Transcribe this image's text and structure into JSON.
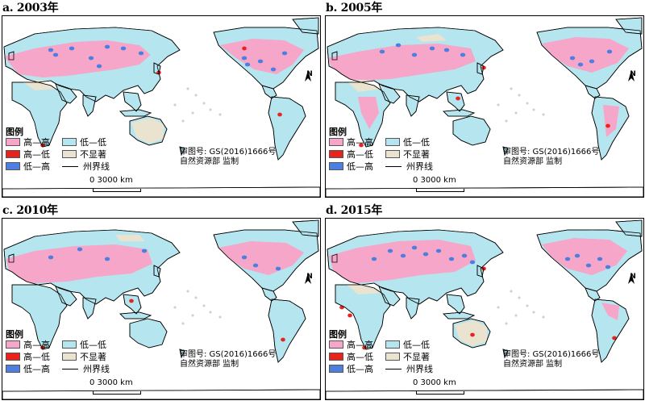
{
  "colors": {
    "high_high": "#f6a6c8",
    "high_low": "#e8231c",
    "low_high": "#4c7fe0",
    "low_low": "#b5e6ef",
    "not_significant": "#e9e3cf",
    "ocean": "#ffffff",
    "coast": "#000000"
  },
  "legend": {
    "title": "图例",
    "items": [
      {
        "key": "high_high",
        "label": "高—高"
      },
      {
        "key": "low_low",
        "label": "低—低"
      },
      {
        "key": "high_low",
        "label": "高—低"
      },
      {
        "key": "not_significant",
        "label": "不显著"
      },
      {
        "key": "low_high",
        "label": "低—高"
      },
      {
        "key": "boundary",
        "label": "州界线"
      }
    ]
  },
  "approval": {
    "line1": "审图号: GS(2016)1666号",
    "line2": "自然资源部 监制"
  },
  "scale": {
    "text": "0    3000 km"
  },
  "north": {
    "label": "N"
  },
  "panels": [
    {
      "title": "a. 2003年"
    },
    {
      "title": "b. 2005年"
    },
    {
      "title": "c. 2010年"
    },
    {
      "title": "d. 2015年"
    }
  ]
}
